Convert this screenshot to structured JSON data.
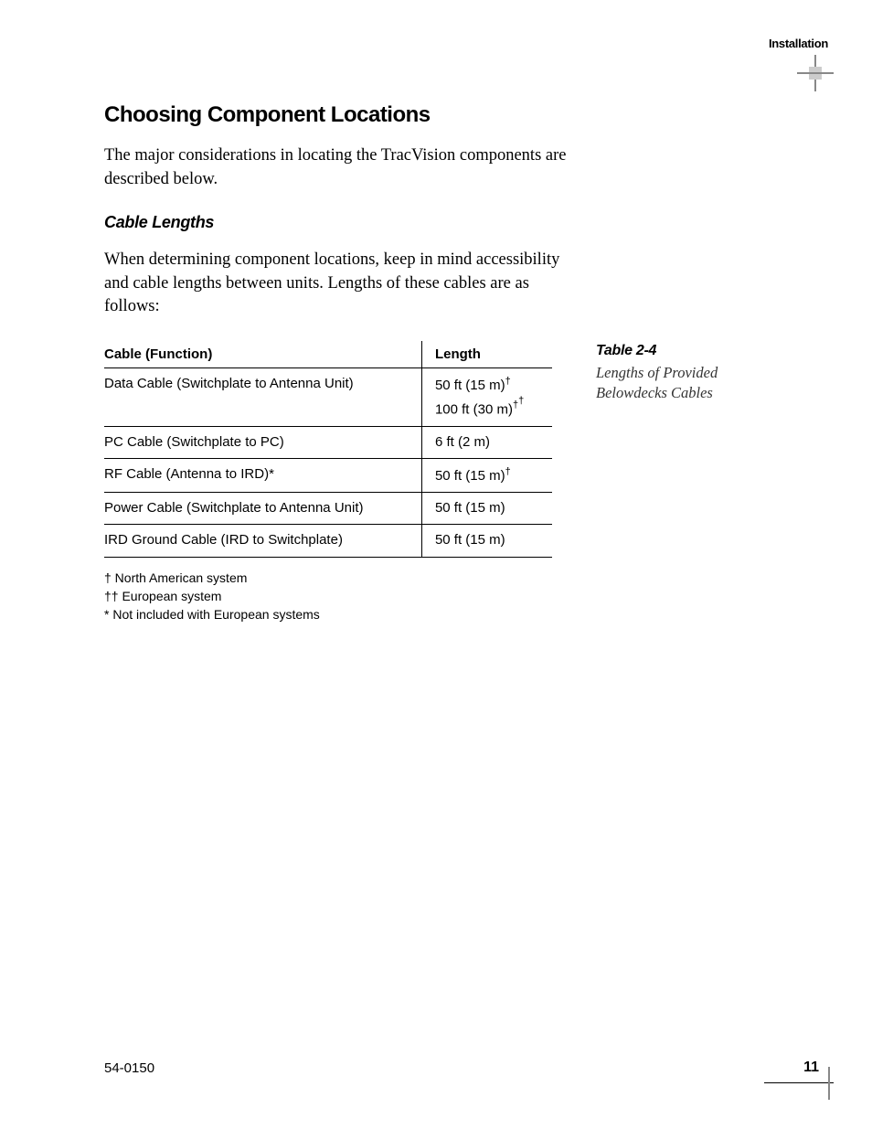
{
  "header": {
    "section": "Installation"
  },
  "heading": "Choosing Component Locations",
  "intro": "The major considerations in locating the TracVision components are described below.",
  "subheading": "Cable Lengths",
  "para2": "When determining component locations, keep in mind accessibility and cable lengths between units. Lengths of these cables are as follows:",
  "table": {
    "columns": [
      "Cable (Function)",
      "Length"
    ],
    "rows": [
      {
        "func": "Data Cable (Switchplate to Antenna Unit)",
        "len": "50 ft (15 m)†\n100 ft (30 m)††"
      },
      {
        "func": "PC Cable (Switchplate to PC)",
        "len": "6 ft (2 m)"
      },
      {
        "func": "RF Cable (Antenna to IRD)*",
        "len": "50 ft (15 m)†"
      },
      {
        "func": "Power Cable (Switchplate to Antenna Unit)",
        "len": "50 ft (15 m)"
      },
      {
        "func": "IRD Ground Cable (IRD to Switchplate)",
        "len": "50 ft (15 m)"
      }
    ]
  },
  "sidebar": {
    "label": "Table 2-4",
    "caption": "Lengths of Provided Belowdecks Cables"
  },
  "footnotes": {
    "a": "†  North American system",
    "b": "†† European system",
    "c": "*  Not included with European systems"
  },
  "footer": {
    "doc": "54-0150",
    "page": "11"
  }
}
